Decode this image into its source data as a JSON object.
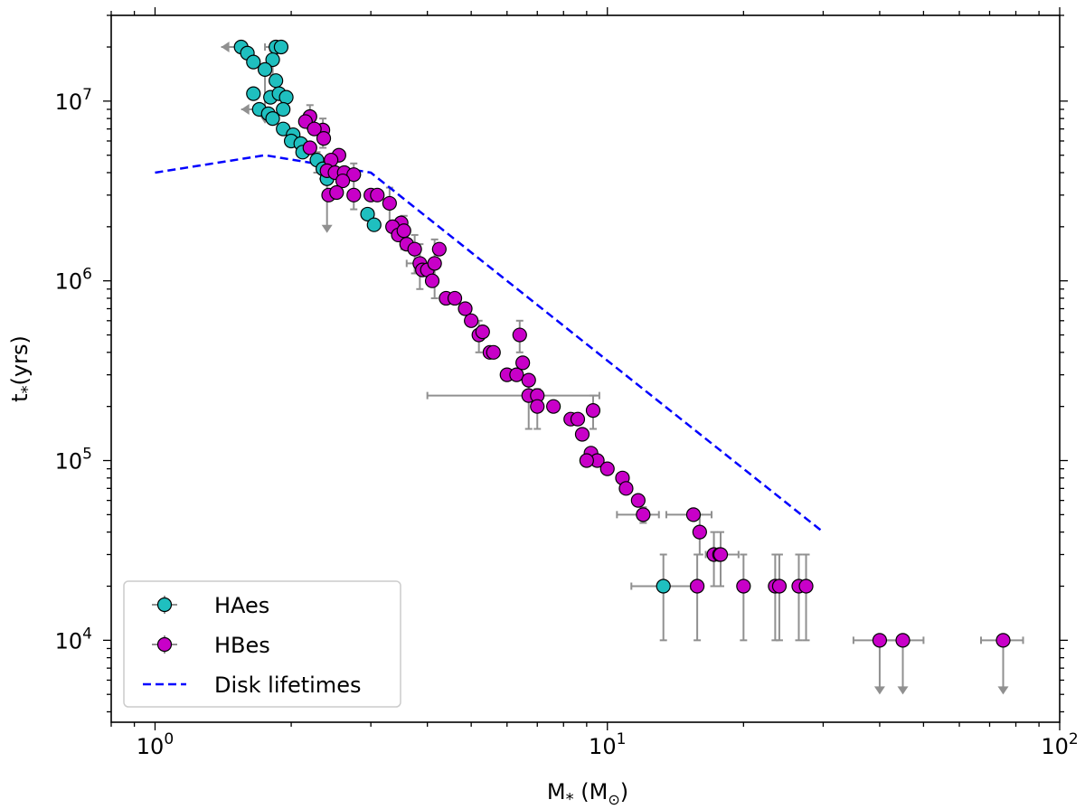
{
  "chart_data": {
    "type": "scatter",
    "title": "",
    "xlabel": "M",
    "xlabel_subscript": "*",
    "xlabel_unit": "(M",
    "xlabel_unit_subscript": "⊙",
    "xlabel_unit_close": ")",
    "ylabel": "t",
    "ylabel_subscript": "*",
    "ylabel_unit": "(yrs)",
    "xscale": "log",
    "yscale": "log",
    "xlim": [
      0.8,
      100
    ],
    "ylim": [
      3500,
      30000000
    ],
    "x_ticks": [
      {
        "value": 1,
        "base": "10",
        "exp": "0"
      },
      {
        "value": 10,
        "base": "10",
        "exp": "1"
      },
      {
        "value": 100,
        "base": "10",
        "exp": "2"
      }
    ],
    "y_ticks": [
      {
        "value": 10000,
        "base": "10",
        "exp": "4"
      },
      {
        "value": 100000,
        "base": "10",
        "exp": "5"
      },
      {
        "value": 1000000,
        "base": "10",
        "exp": "6"
      },
      {
        "value": 10000000,
        "base": "10",
        "exp": "7"
      }
    ],
    "legend_position": "lower-left",
    "legend": [
      {
        "label": "HAes",
        "kind": "marker",
        "color": "#1fbfbf"
      },
      {
        "label": "HBes",
        "kind": "marker",
        "color": "#c800c8"
      },
      {
        "label": "Disk lifetimes",
        "kind": "dashed-line",
        "color": "#0000ff"
      }
    ],
    "colors": {
      "haes": "#1fbfbf",
      "hbes": "#c800c8",
      "errorbar": "#909090",
      "disk": "#0000ff"
    },
    "series": [
      {
        "name": "HAes",
        "points": [
          {
            "x": 1.55,
            "y": 20000000,
            "xlo": 1.4,
            "ll": true
          },
          {
            "x": 1.6,
            "y": 18500000
          },
          {
            "x": 1.65,
            "y": 16500000
          },
          {
            "x": 1.85,
            "y": 20000000,
            "xlo": 1.75,
            "xhi": 1.95
          },
          {
            "x": 1.9,
            "y": 20000000
          },
          {
            "x": 1.82,
            "y": 17000000,
            "ylo": 14000000,
            "yhi": 19000000
          },
          {
            "x": 1.75,
            "y": 15000000,
            "ul": true
          },
          {
            "x": 1.85,
            "y": 13000000
          },
          {
            "x": 1.65,
            "y": 11000000
          },
          {
            "x": 1.8,
            "y": 10500000
          },
          {
            "x": 1.88,
            "y": 11000000
          },
          {
            "x": 1.95,
            "y": 10500000
          },
          {
            "x": 1.7,
            "y": 9000000,
            "xlo": 1.55,
            "ll": true
          },
          {
            "x": 1.78,
            "y": 8500000
          },
          {
            "x": 1.92,
            "y": 9000000
          },
          {
            "x": 1.82,
            "y": 8000000
          },
          {
            "x": 1.92,
            "y": 7000000
          },
          {
            "x": 2.02,
            "y": 6500000
          },
          {
            "x": 2.0,
            "y": 6000000
          },
          {
            "x": 2.1,
            "y": 5800000
          },
          {
            "x": 2.12,
            "y": 5200000
          },
          {
            "x": 2.28,
            "y": 4700000,
            "ylo": 4000000,
            "yhi": 5200000
          },
          {
            "x": 2.35,
            "y": 4200000,
            "ylo": 3700000,
            "yhi": 4800000
          },
          {
            "x": 2.4,
            "y": 3700000,
            "ul": true
          },
          {
            "x": 2.95,
            "y": 2350000
          },
          {
            "x": 3.05,
            "y": 2050000
          },
          {
            "x": 13.3,
            "y": 20000,
            "xlo": 11.3,
            "xhi": 15.3,
            "ylo": 10000,
            "yhi": 30000
          }
        ]
      },
      {
        "name": "HBes",
        "points": [
          {
            "x": 2.2,
            "y": 8200000,
            "ylo": 7000000,
            "yhi": 9500000
          },
          {
            "x": 2.15,
            "y": 7700000
          },
          {
            "x": 2.35,
            "y": 6900000,
            "ylo": 5500000,
            "yhi": 8000000
          },
          {
            "x": 2.25,
            "y": 7000000
          },
          {
            "x": 2.36,
            "y": 6200000
          },
          {
            "x": 2.2,
            "y": 5500000
          },
          {
            "x": 2.55,
            "y": 5000000
          },
          {
            "x": 2.45,
            "y": 4700000
          },
          {
            "x": 2.4,
            "y": 4100000
          },
          {
            "x": 2.5,
            "y": 4000000
          },
          {
            "x": 2.62,
            "y": 4000000
          },
          {
            "x": 2.75,
            "y": 3900000,
            "ylo": 2500000,
            "yhi": 4500000
          },
          {
            "x": 2.6,
            "y": 3600000
          },
          {
            "x": 2.42,
            "y": 3000000
          },
          {
            "x": 2.52,
            "y": 3100000
          },
          {
            "x": 2.75,
            "y": 3000000
          },
          {
            "x": 3.0,
            "y": 3000000
          },
          {
            "x": 3.1,
            "y": 3000000
          },
          {
            "x": 3.3,
            "y": 2700000,
            "ylo": 2000000,
            "yhi": 3300000
          },
          {
            "x": 3.5,
            "y": 2100000
          },
          {
            "x": 3.35,
            "y": 2000000
          },
          {
            "x": 3.45,
            "y": 1800000
          },
          {
            "x": 3.55,
            "y": 1900000,
            "ylo": 1500000,
            "yhi": 2300000
          },
          {
            "x": 3.6,
            "y": 1600000
          },
          {
            "x": 3.75,
            "y": 1500000,
            "ylo": 1100000,
            "yhi": 1800000
          },
          {
            "x": 3.85,
            "y": 1250000,
            "xlo": 3.6,
            "xhi": 4.1,
            "ylo": 900000,
            "yhi": 1600000
          },
          {
            "x": 3.9,
            "y": 1150000
          },
          {
            "x": 4.0,
            "y": 1150000
          },
          {
            "x": 4.25,
            "y": 1500000
          },
          {
            "x": 4.15,
            "y": 1250000,
            "ylo": 800000,
            "yhi": 1700000
          },
          {
            "x": 4.1,
            "y": 1000000
          },
          {
            "x": 4.4,
            "y": 800000
          },
          {
            "x": 4.6,
            "y": 800000
          },
          {
            "x": 4.85,
            "y": 700000
          },
          {
            "x": 5.0,
            "y": 600000
          },
          {
            "x": 5.2,
            "y": 500000,
            "ylo": 400000,
            "yhi": 600000
          },
          {
            "x": 5.3,
            "y": 520000
          },
          {
            "x": 5.5,
            "y": 400000
          },
          {
            "x": 5.6,
            "y": 400000
          },
          {
            "x": 6.0,
            "y": 300000
          },
          {
            "x": 6.3,
            "y": 300000
          },
          {
            "x": 6.4,
            "y": 500000,
            "ylo": 400000,
            "yhi": 600000
          },
          {
            "x": 6.5,
            "y": 350000
          },
          {
            "x": 6.7,
            "y": 280000
          },
          {
            "x": 6.7,
            "y": 230000,
            "xlo": 4.0,
            "xhi": 9.6,
            "ylo": 150000,
            "yhi": 300000
          },
          {
            "x": 7.0,
            "y": 230000
          },
          {
            "x": 7.0,
            "y": 200000,
            "ylo": 150000,
            "yhi": 250000
          },
          {
            "x": 7.6,
            "y": 200000
          },
          {
            "x": 8.3,
            "y": 170000
          },
          {
            "x": 8.6,
            "y": 170000
          },
          {
            "x": 9.3,
            "y": 190000,
            "ylo": 150000,
            "yhi": 230000
          },
          {
            "x": 8.8,
            "y": 140000
          },
          {
            "x": 9.2,
            "y": 110000
          },
          {
            "x": 9.5,
            "y": 100000
          },
          {
            "x": 10.0,
            "y": 90000
          },
          {
            "x": 9.0,
            "y": 100000
          },
          {
            "x": 10.8,
            "y": 80000
          },
          {
            "x": 11.0,
            "y": 70000
          },
          {
            "x": 11.7,
            "y": 60000
          },
          {
            "x": 12.0,
            "y": 50000,
            "xlo": 10.5,
            "xhi": 13.0,
            "ylo": 45000,
            "yhi": 55000
          },
          {
            "x": 15.5,
            "y": 50000,
            "xlo": 13.5,
            "xhi": 17.0
          },
          {
            "x": 16.0,
            "y": 40000,
            "ylo": 30000,
            "yhi": 50000
          },
          {
            "x": 17.2,
            "y": 30000,
            "ylo": 20000,
            "yhi": 40000
          },
          {
            "x": 17.7,
            "y": 30000
          },
          {
            "x": 17.8,
            "y": 30000,
            "xlo": 16.5,
            "xhi": 19.5,
            "ylo": 20000,
            "yhi": 40000
          },
          {
            "x": 15.8,
            "y": 20000,
            "ylo": 10000,
            "yhi": 30000
          },
          {
            "x": 20.0,
            "y": 20000,
            "ylo": 10000,
            "yhi": 30000
          },
          {
            "x": 23.5,
            "y": 20000,
            "ylo": 10000,
            "yhi": 30000
          },
          {
            "x": 24.0,
            "y": 20000,
            "ylo": 10000,
            "yhi": 30000
          },
          {
            "x": 26.5,
            "y": 20000,
            "ylo": 10000,
            "yhi": 30000
          },
          {
            "x": 27.5,
            "y": 20000,
            "ylo": 10000,
            "yhi": 30000
          },
          {
            "x": 40.0,
            "y": 10000,
            "xlo": 35.0,
            "xhi": 45.0,
            "ul": true
          },
          {
            "x": 45.0,
            "y": 10000,
            "xlo": 40.0,
            "xhi": 50.0,
            "ul": true
          },
          {
            "x": 75.0,
            "y": 10000,
            "xlo": 67.0,
            "xhi": 83.0,
            "ul": true
          }
        ]
      },
      {
        "name": "Disk lifetimes",
        "style": "dashed",
        "x": [
          1.0,
          1.75,
          3.0,
          30.0
        ],
        "y": [
          4000000,
          5000000,
          4000000,
          40000
        ]
      }
    ]
  }
}
